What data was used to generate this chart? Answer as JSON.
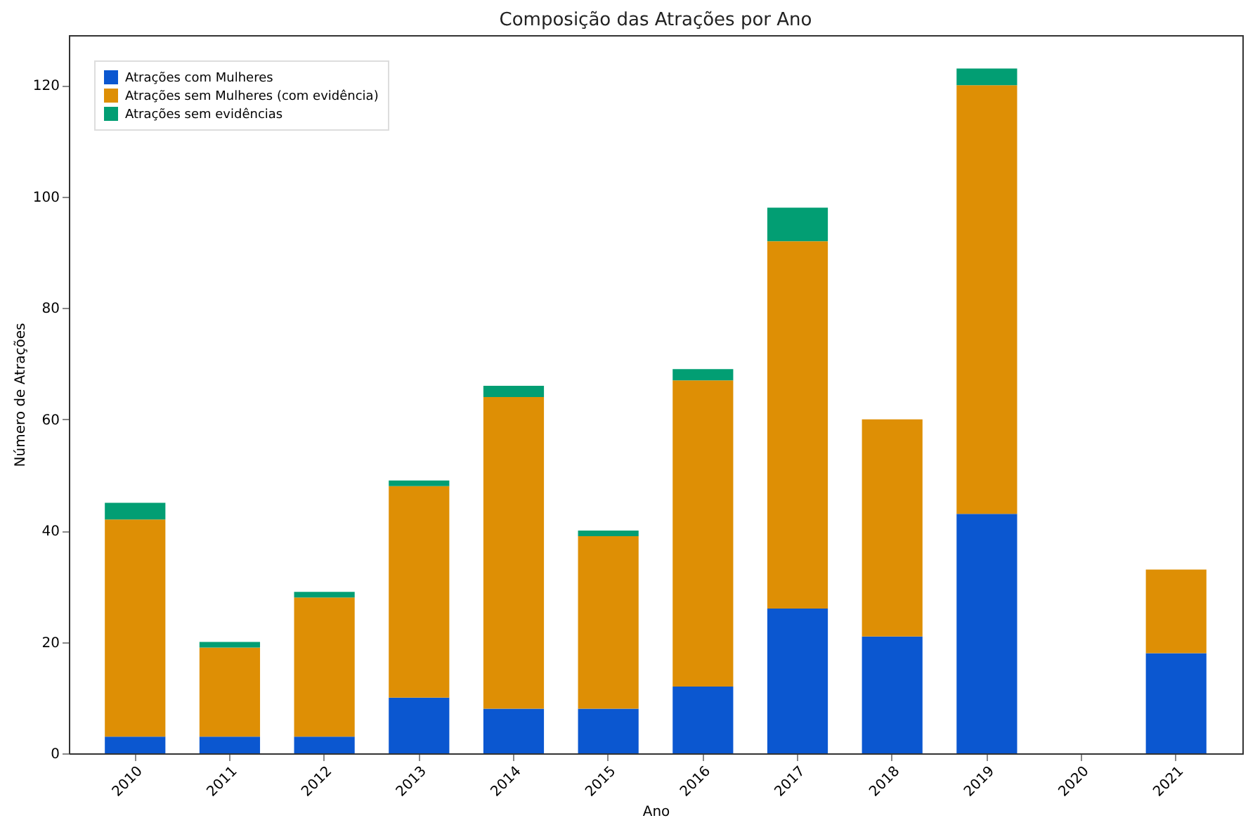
{
  "chart_data": {
    "type": "bar",
    "title": "Composição das Atrações por Ano",
    "xlabel": "Ano",
    "ylabel": "Número de Atrações",
    "categories": [
      "2010",
      "2011",
      "2012",
      "2013",
      "2014",
      "2015",
      "2016",
      "2017",
      "2018",
      "2019",
      "2020",
      "2021"
    ],
    "stacked": true,
    "ylim": [
      0,
      129
    ],
    "yticks": [
      0,
      20,
      40,
      60,
      80,
      100,
      120
    ],
    "grid": false,
    "legend": "top left",
    "series": [
      {
        "name": "Atrações com Mulheres",
        "color": "#0b57d0",
        "values": [
          3,
          3,
          3,
          10,
          8,
          8,
          12,
          26,
          21,
          43,
          0,
          18
        ]
      },
      {
        "name": "Atrações sem Mulheres (com evidência)",
        "color": "#de8f05",
        "values": [
          39,
          16,
          25,
          38,
          56,
          31,
          55,
          66,
          39,
          77,
          0,
          15
        ]
      },
      {
        "name": "Atrações sem evidências",
        "color": "#029e73",
        "values": [
          3,
          1,
          1,
          1,
          2,
          1,
          2,
          6,
          0,
          3,
          0,
          0
        ]
      }
    ]
  }
}
